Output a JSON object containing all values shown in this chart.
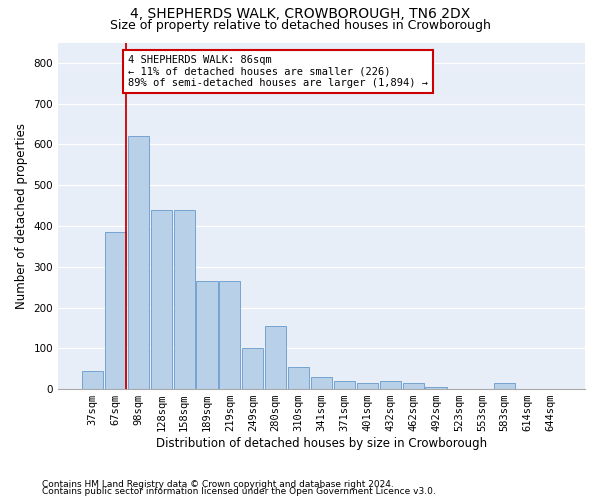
{
  "title": "4, SHEPHERDS WALK, CROWBOROUGH, TN6 2DX",
  "subtitle": "Size of property relative to detached houses in Crowborough",
  "xlabel": "Distribution of detached houses by size in Crowborough",
  "ylabel": "Number of detached properties",
  "footnote1": "Contains HM Land Registry data © Crown copyright and database right 2024.",
  "footnote2": "Contains public sector information licensed under the Open Government Licence v3.0.",
  "bar_labels": [
    "37sqm",
    "67sqm",
    "98sqm",
    "128sqm",
    "158sqm",
    "189sqm",
    "219sqm",
    "249sqm",
    "280sqm",
    "310sqm",
    "341sqm",
    "371sqm",
    "401sqm",
    "432sqm",
    "462sqm",
    "492sqm",
    "523sqm",
    "553sqm",
    "583sqm",
    "614sqm",
    "644sqm"
  ],
  "bar_values": [
    45,
    385,
    620,
    440,
    440,
    265,
    265,
    100,
    155,
    55,
    30,
    20,
    15,
    20,
    15,
    5,
    0,
    0,
    15,
    0,
    0
  ],
  "bar_color": "#b8d0e8",
  "bar_edge_color": "#6699cc",
  "background_color": "#e8eef7",
  "grid_color": "#ffffff",
  "vline_color": "#cc0000",
  "annotation_text": "4 SHEPHERDS WALK: 86sqm\n← 11% of detached houses are smaller (226)\n89% of semi-detached houses are larger (1,894) →",
  "annotation_box_color": "white",
  "annotation_box_edge": "#cc0000",
  "ylim": [
    0,
    850
  ],
  "yticks": [
    0,
    100,
    200,
    300,
    400,
    500,
    600,
    700,
    800
  ],
  "title_fontsize": 10,
  "subtitle_fontsize": 9,
  "label_fontsize": 8.5,
  "tick_fontsize": 7.5,
  "annot_fontsize": 7.5,
  "footnote_fontsize": 6.5
}
